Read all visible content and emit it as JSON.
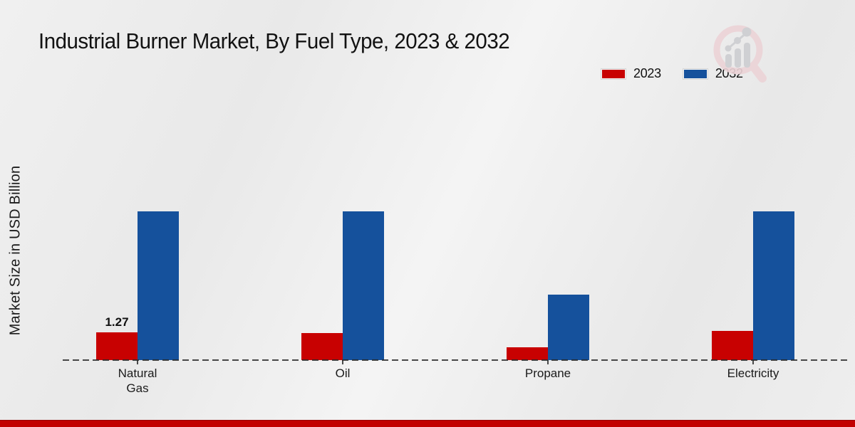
{
  "chart_data": {
    "type": "bar",
    "title": "Industrial Burner Market, By Fuel Type, 2023 & 2032",
    "ylabel": "Market Size in USD Billion",
    "xlabel": "",
    "categories": [
      "Natural Gas",
      "Oil",
      "Propane",
      "Electricity"
    ],
    "series": [
      {
        "name": "2023",
        "color": "#c80101",
        "values": [
          1.27,
          1.25,
          0.57,
          1.33
        ]
      },
      {
        "name": "2032",
        "color": "#15519c",
        "values": [
          6.8,
          6.8,
          3.0,
          6.8
        ]
      }
    ],
    "bar_labels": [
      {
        "series_index": 0,
        "category_index": 0,
        "text": "1.27"
      }
    ],
    "ylim": [
      0,
      7
    ],
    "grid": "off",
    "y_axis_ticks": "none",
    "baseline_style": "dashed",
    "legend_position": "top-right"
  },
  "branding": {
    "logo_icon": "magnifier-growth-chart-watermark",
    "bottom_stripe_color": "#c20000"
  },
  "colors": {
    "background": "#ececec",
    "baseline": "#2a2a2a",
    "series_2023": "#c80101",
    "series_2032": "#15519c"
  }
}
